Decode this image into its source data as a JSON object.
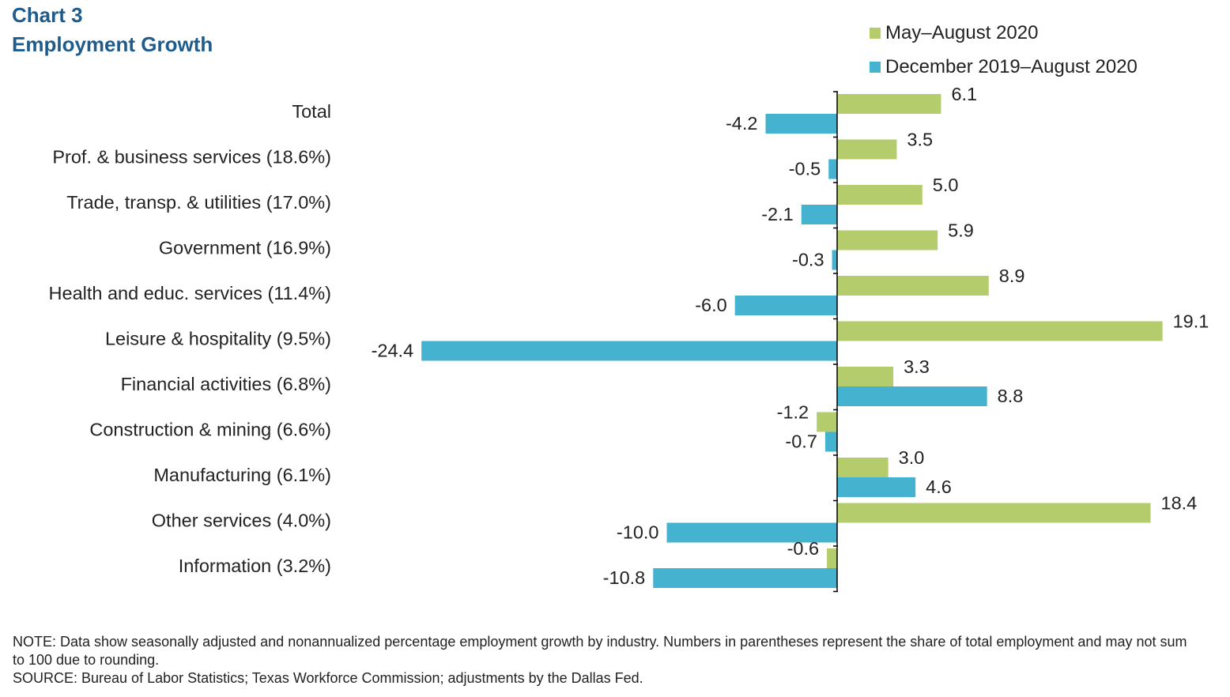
{
  "title": "Chart 3",
  "subtitle": "Employment Growth",
  "colors": {
    "series1": "#b5cc6c",
    "series2": "#45b3cf",
    "title": "#1f5c8b",
    "text": "#222222"
  },
  "chart_data": {
    "type": "bar",
    "orientation": "horizontal",
    "title": "Employment Growth",
    "categories": [
      "Total",
      "Prof. & business services (18.6%)",
      "Trade, transp. & utilities (17.0%)",
      "Government (16.9%)",
      "Health and educ. services (11.4%)",
      "Leisure & hospitality (9.5%)",
      "Financial activities (6.8%)",
      "Construction & mining (6.6%)",
      "Manufacturing (6.1%)",
      "Other services (4.0%)",
      "Information (3.2%)"
    ],
    "series": [
      {
        "name": "May–August 2020",
        "color": "#b5cc6c",
        "values": [
          6.1,
          3.5,
          5.0,
          5.9,
          8.9,
          19.1,
          3.3,
          -1.2,
          3.0,
          18.4,
          -0.6
        ]
      },
      {
        "name": "December 2019–August 2020",
        "color": "#45b3cf",
        "values": [
          -4.2,
          -0.5,
          -2.1,
          -0.3,
          -6.0,
          -24.4,
          8.8,
          -0.7,
          4.6,
          -10.0,
          -10.8
        ]
      }
    ],
    "xlim": [
      -24.4,
      19.1
    ],
    "legend": "top-right"
  },
  "notes": {
    "note": "NOTE: Data show seasonally adjusted and nonannualized percentage employment growth by industry. Numbers in parentheses represent the share of total employment and may not sum to 100 due to rounding.",
    "source": "SOURCE: Bureau of Labor Statistics; Texas Workforce Commission; adjustments by the Dallas Fed."
  }
}
